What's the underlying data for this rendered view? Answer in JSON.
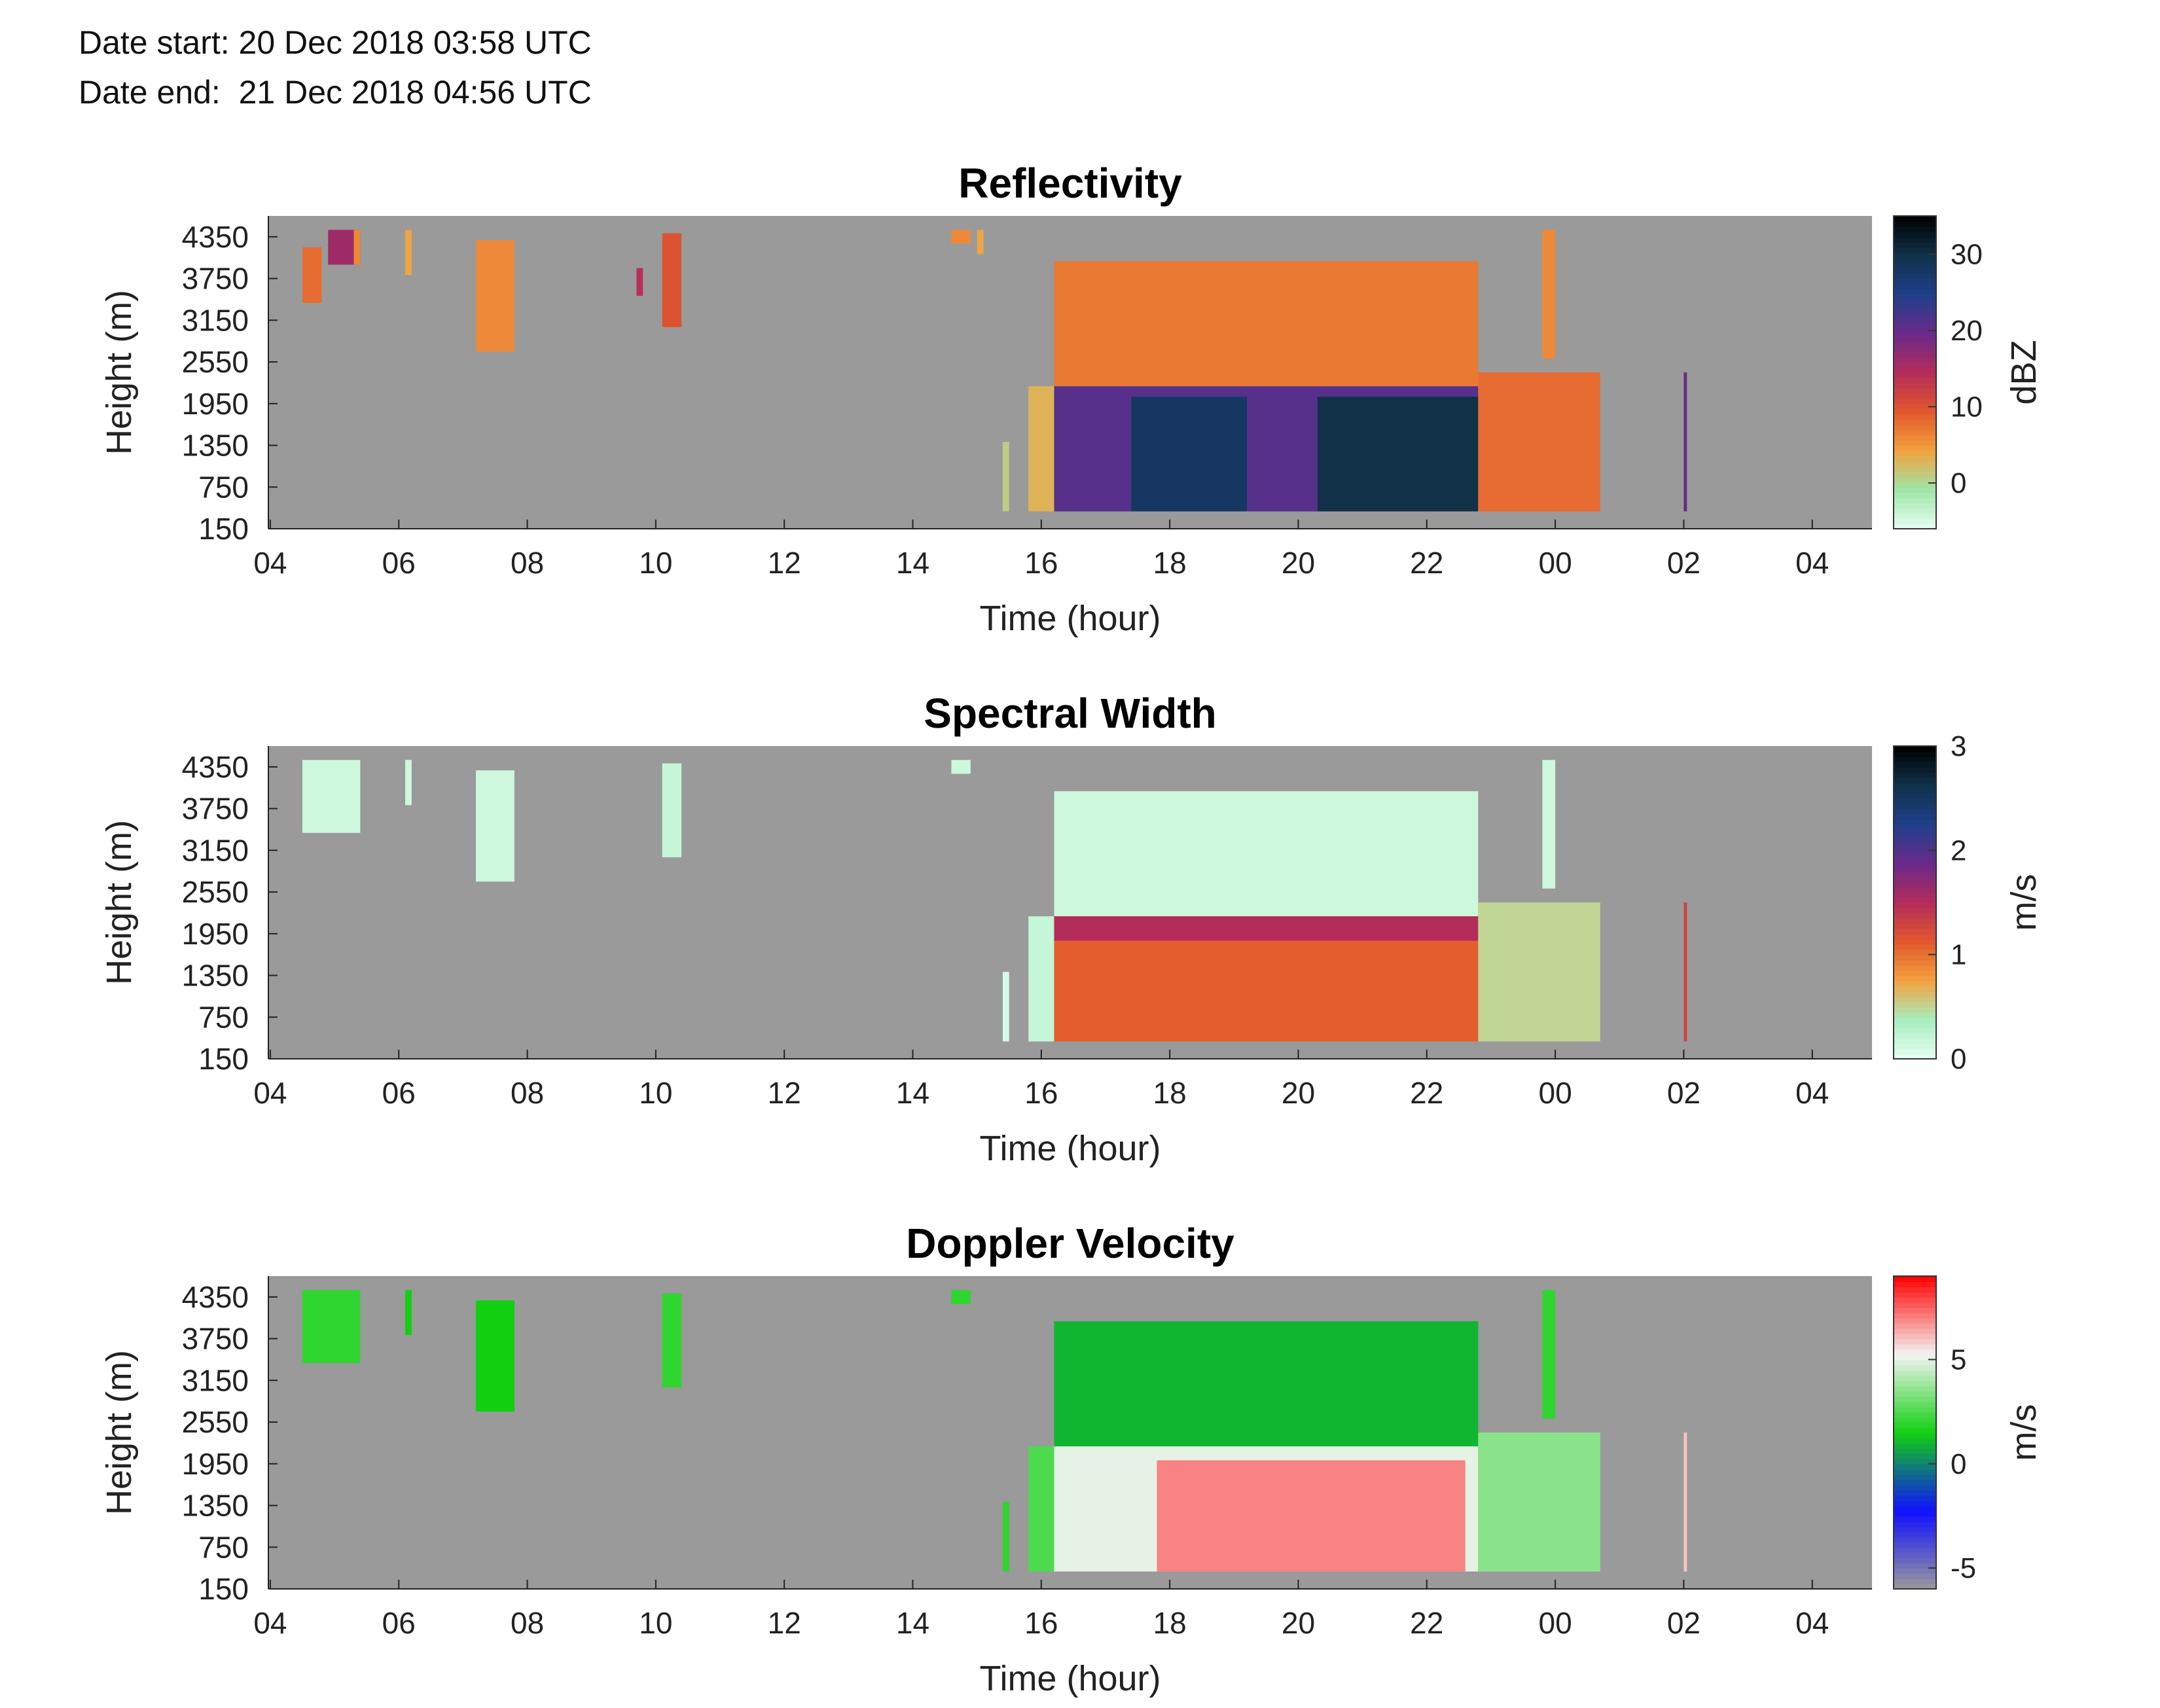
{
  "header": {
    "date_start": "Date start: 20 Dec 2018 03:58 UTC",
    "date_end": "Date end:  21 Dec 2018 04:56 UTC"
  },
  "colors": {
    "background_missing": "#9a9a9a",
    "reflectivity_scale": [
      "#e6fff2",
      "#9ee6a8",
      "#f2a23e",
      "#e2582c",
      "#b42c5a",
      "#6a2a8a",
      "#1f3f8a",
      "#10324a",
      "#000000"
    ],
    "spectral_scale": [
      "#e6fff2",
      "#a8eec0",
      "#f2a23e",
      "#e2582c",
      "#b42c5a",
      "#6a2a8a",
      "#1f3f8a",
      "#10324a",
      "#000000"
    ],
    "velocity_scale": [
      "#9a9a9a",
      "#1010ff",
      "#10d010",
      "#f4f4f4",
      "#ff0000"
    ]
  },
  "chart_data": [
    {
      "type": "heatmap",
      "title": "Reflectivity",
      "xlabel": "Time (hour)",
      "ylabel": "Height (m)",
      "x_ticks": [
        "04",
        "06",
        "08",
        "10",
        "12",
        "14",
        "16",
        "18",
        "20",
        "22",
        "00",
        "02",
        "04"
      ],
      "y_ticks": [
        "150",
        "750",
        "1350",
        "1950",
        "2550",
        "3150",
        "3750",
        "4350"
      ],
      "xlim_hours": [
        3.97,
        28.93
      ],
      "ylim_m": [
        150,
        4650
      ],
      "colorbar": {
        "label": "dBZ",
        "ticks": [
          "0",
          "10",
          "20",
          "30"
        ],
        "range": [
          -6,
          35
        ],
        "colormap": "reflectivity_scale"
      },
      "regions": [
        {
          "t0": 4.5,
          "t1": 4.8,
          "h0": 3400,
          "h1": 4200,
          "value": 8
        },
        {
          "t0": 4.9,
          "t1": 5.4,
          "h0": 3950,
          "h1": 4450,
          "value": 16
        },
        {
          "t0": 5.3,
          "t1": 5.4,
          "h0": 3950,
          "h1": 4450,
          "value": 6
        },
        {
          "t0": 6.1,
          "t1": 6.2,
          "h0": 3800,
          "h1": 4450,
          "value": 4
        },
        {
          "t0": 7.2,
          "t1": 7.8,
          "h0": 2700,
          "h1": 4300,
          "value": 6
        },
        {
          "t0": 9.7,
          "t1": 9.8,
          "h0": 3500,
          "h1": 3900,
          "value": 14
        },
        {
          "t0": 10.1,
          "t1": 10.4,
          "h0": 3050,
          "h1": 4400,
          "value": 10
        },
        {
          "t0": 14.6,
          "t1": 14.9,
          "h0": 4250,
          "h1": 4450,
          "value": 6
        },
        {
          "t0": 15.0,
          "t1": 15.1,
          "h0": 4100,
          "h1": 4450,
          "value": 4
        },
        {
          "t0": 15.4,
          "t1": 15.5,
          "h0": 400,
          "h1": 1400,
          "value": 1
        },
        {
          "t0": 15.8,
          "t1": 16.2,
          "h0": 400,
          "h1": 2200,
          "value": 3
        },
        {
          "t0": 16.2,
          "t1": 22.8,
          "h0": 2200,
          "h1": 4000,
          "value": 7
        },
        {
          "t0": 16.2,
          "t1": 22.8,
          "h0": 400,
          "h1": 2200,
          "value": 21
        },
        {
          "t0": 17.4,
          "t1": 19.2,
          "h0": 400,
          "h1": 2050,
          "value": 28
        },
        {
          "t0": 20.3,
          "t1": 22.8,
          "h0": 400,
          "h1": 2050,
          "value": 30
        },
        {
          "t0": 22.8,
          "t1": 24.7,
          "h0": 400,
          "h1": 2400,
          "value": 8
        },
        {
          "t0": 23.8,
          "t1": 24.0,
          "h0": 2600,
          "h1": 4450,
          "value": 6
        },
        {
          "t0": 26.0,
          "t1": 26.05,
          "h0": 400,
          "h1": 2400,
          "value": 20
        }
      ]
    },
    {
      "type": "heatmap",
      "title": "Spectral Width",
      "xlabel": "Time (hour)",
      "ylabel": "Height (m)",
      "x_ticks": [
        "04",
        "06",
        "08",
        "10",
        "12",
        "14",
        "16",
        "18",
        "20",
        "22",
        "00",
        "02",
        "04"
      ],
      "y_ticks": [
        "150",
        "750",
        "1350",
        "1950",
        "2550",
        "3150",
        "3750",
        "4350"
      ],
      "xlim_hours": [
        3.97,
        28.93
      ],
      "ylim_m": [
        150,
        4650
      ],
      "colorbar": {
        "label": "m/s",
        "ticks": [
          "0",
          "1",
          "2",
          "3"
        ],
        "range": [
          0,
          3
        ],
        "colormap": "spectral_scale"
      },
      "regions": [
        {
          "t0": 4.5,
          "t1": 5.4,
          "h0": 3400,
          "h1": 4450,
          "value": 0.15
        },
        {
          "t0": 6.1,
          "t1": 6.2,
          "h0": 3800,
          "h1": 4450,
          "value": 0.15
        },
        {
          "t0": 7.2,
          "t1": 7.8,
          "h0": 2700,
          "h1": 4300,
          "value": 0.15
        },
        {
          "t0": 10.1,
          "t1": 10.4,
          "h0": 3050,
          "h1": 4400,
          "value": 0.2
        },
        {
          "t0": 14.6,
          "t1": 14.9,
          "h0": 4250,
          "h1": 4450,
          "value": 0.15
        },
        {
          "t0": 15.4,
          "t1": 15.5,
          "h0": 400,
          "h1": 1400,
          "value": 0.1
        },
        {
          "t0": 15.8,
          "t1": 16.2,
          "h0": 400,
          "h1": 2200,
          "value": 0.2
        },
        {
          "t0": 16.2,
          "t1": 22.8,
          "h0": 2200,
          "h1": 4000,
          "value": 0.15
        },
        {
          "t0": 16.2,
          "t1": 22.8,
          "h0": 400,
          "h1": 2200,
          "value": 1.1
        },
        {
          "t0": 16.2,
          "t1": 22.8,
          "h0": 1850,
          "h1": 2200,
          "value": 1.5
        },
        {
          "t0": 22.8,
          "t1": 24.7,
          "h0": 400,
          "h1": 2400,
          "value": 0.5
        },
        {
          "t0": 23.8,
          "t1": 24.0,
          "h0": 2600,
          "h1": 4450,
          "value": 0.15
        },
        {
          "t0": 26.0,
          "t1": 26.05,
          "h0": 400,
          "h1": 2400,
          "value": 1.3
        }
      ]
    },
    {
      "type": "heatmap",
      "title": "Doppler Velocity",
      "xlabel": "Time (hour)",
      "ylabel": "Height (m)",
      "x_ticks": [
        "04",
        "06",
        "08",
        "10",
        "12",
        "14",
        "16",
        "18",
        "20",
        "22",
        "00",
        "02",
        "04"
      ],
      "y_ticks": [
        "150",
        "750",
        "1350",
        "1950",
        "2550",
        "3150",
        "3750",
        "4350"
      ],
      "xlim_hours": [
        3.97,
        28.93
      ],
      "ylim_m": [
        150,
        4650
      ],
      "colorbar": {
        "label": "m/s",
        "ticks": [
          "5",
          "0",
          "-5"
        ],
        "range": [
          -6,
          9
        ],
        "colormap": "velocity_scale"
      },
      "regions": [
        {
          "t0": 4.5,
          "t1": 5.4,
          "h0": 3400,
          "h1": 4450,
          "value": 2
        },
        {
          "t0": 6.1,
          "t1": 6.2,
          "h0": 3800,
          "h1": 4450,
          "value": 1.5
        },
        {
          "t0": 7.2,
          "t1": 7.8,
          "h0": 2700,
          "h1": 4300,
          "value": 1.5
        },
        {
          "t0": 10.1,
          "t1": 10.4,
          "h0": 3050,
          "h1": 4400,
          "value": 2
        },
        {
          "t0": 14.6,
          "t1": 14.9,
          "h0": 4250,
          "h1": 4450,
          "value": 2
        },
        {
          "t0": 15.4,
          "t1": 15.5,
          "h0": 400,
          "h1": 1400,
          "value": 2
        },
        {
          "t0": 15.8,
          "t1": 16.2,
          "h0": 400,
          "h1": 2200,
          "value": 2.5
        },
        {
          "t0": 16.2,
          "t1": 22.8,
          "h0": 2200,
          "h1": 4000,
          "value": 1
        },
        {
          "t0": 16.2,
          "t1": 22.8,
          "h0": 400,
          "h1": 2200,
          "value": 5
        },
        {
          "t0": 17.8,
          "t1": 22.6,
          "h0": 400,
          "h1": 2000,
          "value": 7
        },
        {
          "t0": 22.8,
          "t1": 24.7,
          "h0": 400,
          "h1": 2400,
          "value": 3.5
        },
        {
          "t0": 23.8,
          "t1": 24.0,
          "h0": 2600,
          "h1": 4450,
          "value": 2
        },
        {
          "t0": 26.0,
          "t1": 26.05,
          "h0": 400,
          "h1": 2400,
          "value": 6
        }
      ]
    }
  ]
}
